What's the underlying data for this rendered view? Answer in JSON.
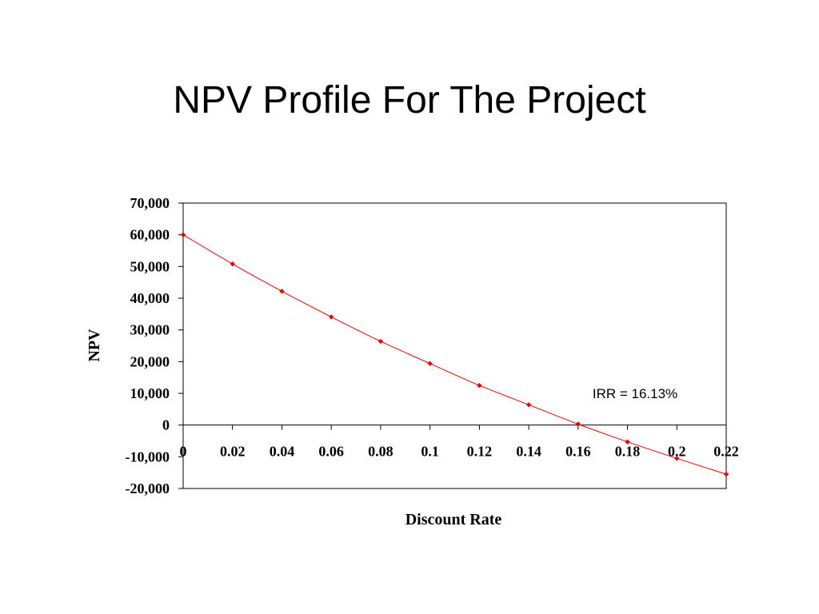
{
  "slide": {
    "title": "NPV Profile For The Project"
  },
  "chart_data": {
    "type": "line",
    "xlabel": "Discount Rate",
    "ylabel": "NPV",
    "ylim": [
      -20000,
      70000
    ],
    "xlim": [
      0,
      0.22
    ],
    "y_ticks": [
      70000,
      60000,
      50000,
      40000,
      30000,
      20000,
      10000,
      0,
      -10000,
      -20000
    ],
    "y_tick_labels": [
      "70,000",
      "60,000",
      "50,000",
      "40,000",
      "30,000",
      "20,000",
      "10,000",
      "0",
      "-10,000",
      "-20,000"
    ],
    "x_ticks": [
      0,
      0.02,
      0.04,
      0.06,
      0.08,
      0.1,
      0.12,
      0.14,
      0.16,
      0.18,
      0.2,
      0.22
    ],
    "x_tick_labels": [
      "0",
      "0.02",
      "0.04",
      "0.06",
      "0.08",
      "0.1",
      "0.12",
      "0.14",
      "0.16",
      "0.18",
      "0.2",
      "0.22"
    ],
    "grid": false,
    "series": [
      {
        "color": "#e60000",
        "x": [
          0,
          0.02,
          0.04,
          0.06,
          0.08,
          0.1,
          0.12,
          0.14,
          0.16,
          0.18,
          0.2,
          0.22
        ],
        "y": [
          60000,
          50800,
          42200,
          34100,
          26400,
          19400,
          12500,
          6400,
          300,
          -5300,
          -10500,
          -15500
        ]
      }
    ],
    "annotations": [
      {
        "text": "IRR = 16.13%"
      }
    ]
  }
}
